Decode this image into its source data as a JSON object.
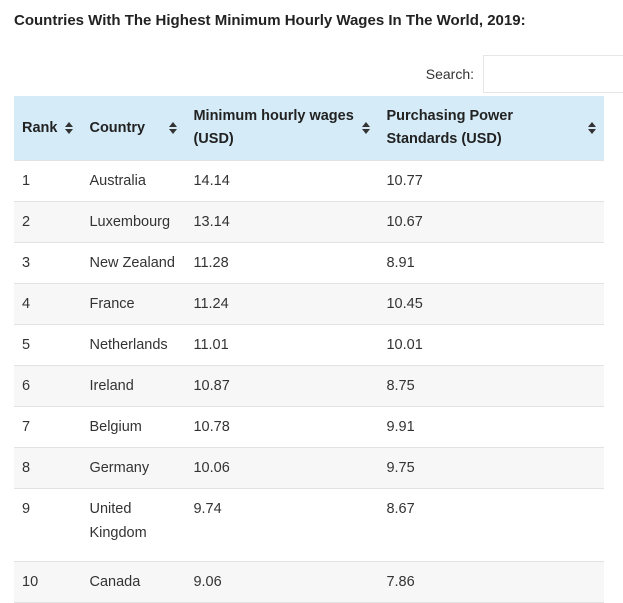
{
  "title": "Countries With The Highest Minimum Hourly Wages In The World, 2019:",
  "search": {
    "label": "Search:",
    "placeholder": "",
    "value": ""
  },
  "table": {
    "headers": {
      "rank": "Rank",
      "country": "Country",
      "wage": "Minimum hourly wages (USD)",
      "pps": "Purchasing Power Standards (USD)"
    },
    "rows": [
      {
        "rank": "1",
        "country": "Australia",
        "wage": "14.14",
        "pps": "10.77"
      },
      {
        "rank": "2",
        "country": "Luxembourg",
        "wage": "13.14",
        "pps": "10.67"
      },
      {
        "rank": "3",
        "country": "New Zealand",
        "wage": "11.28",
        "pps": "8.91"
      },
      {
        "rank": "4",
        "country": "France",
        "wage": "11.24",
        "pps": "10.45"
      },
      {
        "rank": "5",
        "country": "Netherlands",
        "wage": "11.01",
        "pps": "10.01"
      },
      {
        "rank": "6",
        "country": "Ireland",
        "wage": "10.87",
        "pps": "8.75"
      },
      {
        "rank": "7",
        "country": "Belgium",
        "wage": "10.78",
        "pps": "9.91"
      },
      {
        "rank": "8",
        "country": "Germany",
        "wage": "10.06",
        "pps": "9.75"
      },
      {
        "rank": "9",
        "country": "United Kingdom",
        "wage": "9.74",
        "pps": "8.67"
      },
      {
        "rank": "10",
        "country": "Canada",
        "wage": "9.06",
        "pps": "7.86"
      }
    ]
  },
  "icons": {
    "sort": "sort-arrows-icon"
  },
  "colors": {
    "header_bg": "#d5ecf8",
    "stripe_bg": "#f7f7f7",
    "border": "#e2e2e2"
  }
}
